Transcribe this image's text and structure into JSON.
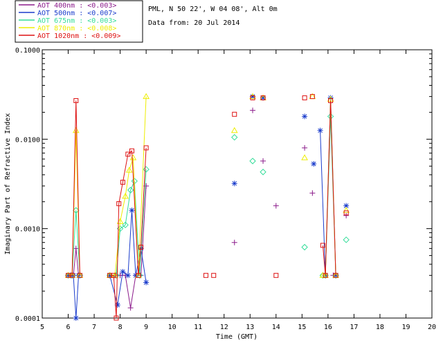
{
  "header": {
    "site_line": "PML, N 50 22', W 04 08', Alt 0m",
    "date_line": "Data from: 20 Jul 2014"
  },
  "legend": [
    {
      "label": "AOT  400nm : <0.003>",
      "color": "#8b1a8b"
    },
    {
      "label": "AOT  500nm : <0.007>",
      "color": "#1a3ccc"
    },
    {
      "label": "AOT  675nm : <0.003>",
      "color": "#33dd99"
    },
    {
      "label": "AOT  870nm : <0.008>",
      "color": "#eeee00"
    },
    {
      "label": "AOT 1020nm : <0.009>",
      "color": "#dd1111"
    }
  ],
  "chart_data": {
    "type": "line",
    "xlabel": "Time (GMT)",
    "ylabel": "Imaginary Part of Refractive Index",
    "xlim": [
      5,
      20
    ],
    "ylim": [
      0.0001,
      0.1
    ],
    "yscale": "log",
    "x_ticks": [
      5,
      6,
      7,
      8,
      9,
      10,
      11,
      12,
      13,
      14,
      15,
      16,
      17,
      18,
      19,
      20
    ],
    "y_ticks": [
      {
        "value": 0.0001,
        "label": "0.0001"
      },
      {
        "value": 0.001,
        "label": "0.0010"
      },
      {
        "value": 0.01,
        "label": "0.0100"
      },
      {
        "value": 0.1,
        "label": "0.1000"
      }
    ],
    "series": [
      {
        "name": "AOT  400nm : <0.003>",
        "color": "#8b1a8b",
        "marker": "plus",
        "segments": [
          [
            [
              6,
              0.0003
            ],
            [
              6.1,
              0.0003
            ],
            [
              6.2,
              0.0003
            ],
            [
              6.3,
              0.0006
            ],
            [
              6.4,
              0.0003
            ]
          ],
          [
            [
              7.6,
              0.0003
            ],
            [
              7.8,
              0.0003
            ],
            [
              8.0,
              0.0003
            ],
            [
              8.2,
              0.0003
            ],
            [
              8.4,
              0.00013
            ],
            [
              8.6,
              0.0003
            ],
            [
              8.8,
              0.0003
            ],
            [
              9.0,
              0.003
            ]
          ]
        ],
        "points": [
          [
            12.4,
            0.0007
          ],
          [
            13.1,
            0.021
          ],
          [
            13.5,
            0.0057
          ],
          [
            14,
            0.0018
          ],
          [
            15.1,
            0.008
          ],
          [
            15.4,
            0.0025
          ],
          [
            15.9,
            0.0003
          ],
          [
            16.2,
            0.0003
          ],
          [
            16.7,
            0.0014
          ]
        ]
      },
      {
        "name": "AOT  500nm : <0.007>",
        "color": "#1a3ccc",
        "marker": "star",
        "segments": [
          [
            [
              6,
              0.0003
            ],
            [
              6.1,
              0.0003
            ],
            [
              6.2,
              0.0003
            ],
            [
              6.3,
              0.0001
            ],
            [
              6.4,
              0.0003
            ]
          ],
          [
            [
              7.6,
              0.0003
            ],
            [
              7.9,
              0.00014
            ],
            [
              8.1,
              0.00033
            ],
            [
              8.3,
              0.0003
            ],
            [
              8.45,
              0.0016
            ],
            [
              8.6,
              0.0003
            ],
            [
              8.8,
              0.0006
            ],
            [
              9.0,
              0.00025
            ]
          ],
          [
            [
              15.7,
              0.0125
            ],
            [
              15.9,
              0.0003
            ],
            [
              16.1,
              0.029
            ],
            [
              16.3,
              0.0003
            ]
          ]
        ],
        "points": [
          [
            12.4,
            0.0032
          ],
          [
            13.1,
            0.03
          ],
          [
            13.5,
            0.029
          ],
          [
            15.1,
            0.018
          ],
          [
            15.45,
            0.0053
          ],
          [
            16.7,
            0.0018
          ]
        ]
      },
      {
        "name": "AOT  675nm : <0.003>",
        "color": "#33dd99",
        "marker": "diamond",
        "segments": [
          [
            [
              6,
              0.0003
            ],
            [
              6.15,
              0.0003
            ],
            [
              6.3,
              0.0016
            ],
            [
              6.45,
              0.0003
            ]
          ],
          [
            [
              7.6,
              0.0003
            ],
            [
              7.85,
              0.0003
            ],
            [
              8.0,
              0.001
            ],
            [
              8.2,
              0.0011
            ],
            [
              8.4,
              0.0027
            ],
            [
              8.55,
              0.0034
            ],
            [
              8.75,
              0.0003
            ],
            [
              9.0,
              0.0046
            ]
          ],
          [
            [
              15.9,
              0.0003
            ],
            [
              16.1,
              0.018
            ],
            [
              16.3,
              0.0003
            ]
          ]
        ],
        "points": [
          [
            12.4,
            0.0105
          ],
          [
            13.1,
            0.0057
          ],
          [
            13.5,
            0.0043
          ],
          [
            15.1,
            0.00062
          ],
          [
            15.8,
            0.0003
          ],
          [
            16.7,
            0.00075
          ]
        ]
      },
      {
        "name": "AOT  870nm : <0.008>",
        "color": "#eeee00",
        "marker": "triangle",
        "segments": [
          [
            [
              6,
              0.0003
            ],
            [
              6.15,
              0.0003
            ],
            [
              6.3,
              0.0125
            ],
            [
              6.45,
              0.0003
            ]
          ],
          [
            [
              7.6,
              0.0003
            ],
            [
              7.8,
              0.0003
            ],
            [
              8.0,
              0.0012
            ],
            [
              8.2,
              0.0023
            ],
            [
              8.35,
              0.0045
            ],
            [
              8.5,
              0.0062
            ],
            [
              8.7,
              0.0003
            ],
            [
              9.0,
              0.03
            ]
          ],
          [
            [
              15.9,
              0.0003
            ],
            [
              16.1,
              0.028
            ],
            [
              16.3,
              0.0003
            ]
          ]
        ],
        "points": [
          [
            12.4,
            0.0125
          ],
          [
            13.1,
            0.03
          ],
          [
            13.5,
            0.029
          ],
          [
            15.1,
            0.0062
          ],
          [
            15.4,
            0.03
          ],
          [
            15.8,
            0.0003
          ],
          [
            16.7,
            0.0016
          ]
        ]
      },
      {
        "name": "AOT 1020nm : <0.009>",
        "color": "#dd1111",
        "marker": "square",
        "segments": [
          [
            [
              6,
              0.0003
            ],
            [
              6.15,
              0.0003
            ],
            [
              6.3,
              0.027
            ],
            [
              6.45,
              0.0003
            ]
          ],
          [
            [
              7.6,
              0.0003
            ],
            [
              7.75,
              0.0003
            ],
            [
              7.85,
              0.0001
            ],
            [
              7.95,
              0.0019
            ],
            [
              8.1,
              0.0033
            ],
            [
              8.3,
              0.0068
            ],
            [
              8.45,
              0.0074
            ],
            [
              8.7,
              0.0003
            ],
            [
              8.8,
              0.00062
            ],
            [
              9.0,
              0.008
            ]
          ],
          [
            [
              15.8,
              0.00065
            ],
            [
              15.9,
              0.0003
            ],
            [
              16.1,
              0.027
            ],
            [
              16.3,
              0.0003
            ]
          ]
        ],
        "points": [
          [
            11.3,
            0.0003
          ],
          [
            11.6,
            0.0003
          ],
          [
            12.4,
            0.019
          ],
          [
            13.1,
            0.029
          ],
          [
            13.5,
            0.029
          ],
          [
            14,
            0.0003
          ],
          [
            15.1,
            0.029
          ],
          [
            15.4,
            0.03
          ],
          [
            16.7,
            0.0015
          ]
        ]
      }
    ]
  }
}
